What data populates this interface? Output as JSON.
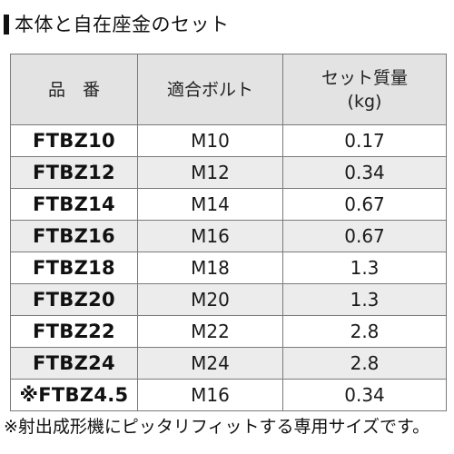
{
  "title": "本体と自在座金のセット",
  "table": {
    "headers": {
      "product_code": "品　番",
      "bolt": "適合ボルト",
      "mass_line1": "セット質量",
      "mass_line2": "(kg)"
    },
    "rows": [
      {
        "code": "FTBZ10",
        "bolt": "M10",
        "mass": "0.17"
      },
      {
        "code": "FTBZ12",
        "bolt": "M12",
        "mass": "0.34"
      },
      {
        "code": "FTBZ14",
        "bolt": "M14",
        "mass": "0.67"
      },
      {
        "code": "FTBZ16",
        "bolt": "M16",
        "mass": "0.67"
      },
      {
        "code": "FTBZ18",
        "bolt": "M18",
        "mass": "1.3"
      },
      {
        "code": "FTBZ20",
        "bolt": "M20",
        "mass": "1.3"
      },
      {
        "code": "FTBZ22",
        "bolt": "M22",
        "mass": "2.8"
      },
      {
        "code": "FTBZ24",
        "bolt": "M24",
        "mass": "2.8"
      },
      {
        "code": "※FTBZ4.5",
        "bolt": "M16",
        "mass": "0.34"
      }
    ]
  },
  "footnote": "※射出成形機にピッタリフィットする専用サイズです。"
}
